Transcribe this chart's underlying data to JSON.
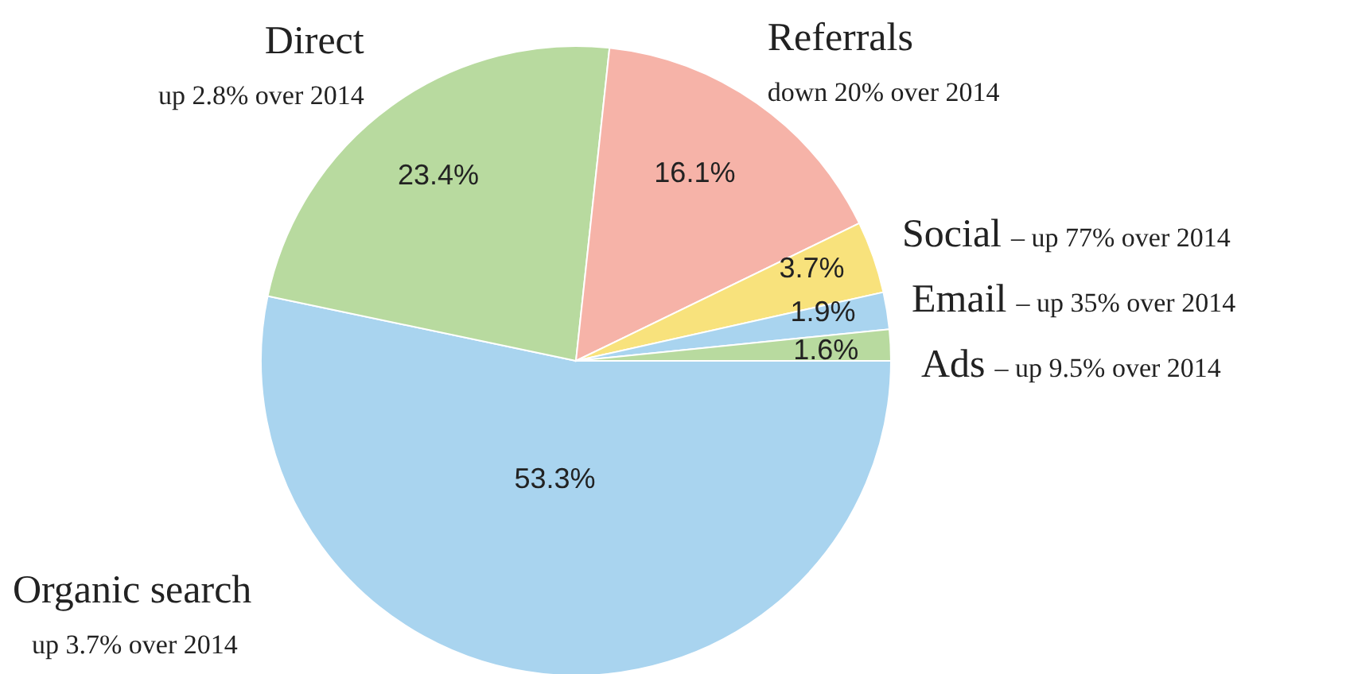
{
  "chart_data": {
    "type": "pie",
    "categories": [
      "Organic search",
      "Direct",
      "Referrals",
      "Social",
      "Email",
      "Ads"
    ],
    "values": [
      53.3,
      23.4,
      16.1,
      3.7,
      1.9,
      1.6
    ],
    "colors": [
      "#a9d4ef",
      "#b8da9f",
      "#f6b3a8",
      "#f8e27c",
      "#a9d4ef",
      "#b8da9f"
    ],
    "value_labels": [
      "53.3%",
      "23.4%",
      "16.1%",
      "3.7%",
      "1.9%",
      "1.6%"
    ],
    "annotations": [
      {
        "text": "up 3.7% over 2014",
        "x": "Organic search"
      },
      {
        "text": "up 2.8% over 2014",
        "x": "Direct"
      },
      {
        "text": "down 20% over 2014",
        "x": "Referrals"
      },
      {
        "text": "– up 77% over 2014",
        "x": "Social"
      },
      {
        "text": "– up 35% over 2014",
        "x": "Email"
      },
      {
        "text": "– up 9.5% over 2014",
        "x": "Ads"
      }
    ]
  }
}
